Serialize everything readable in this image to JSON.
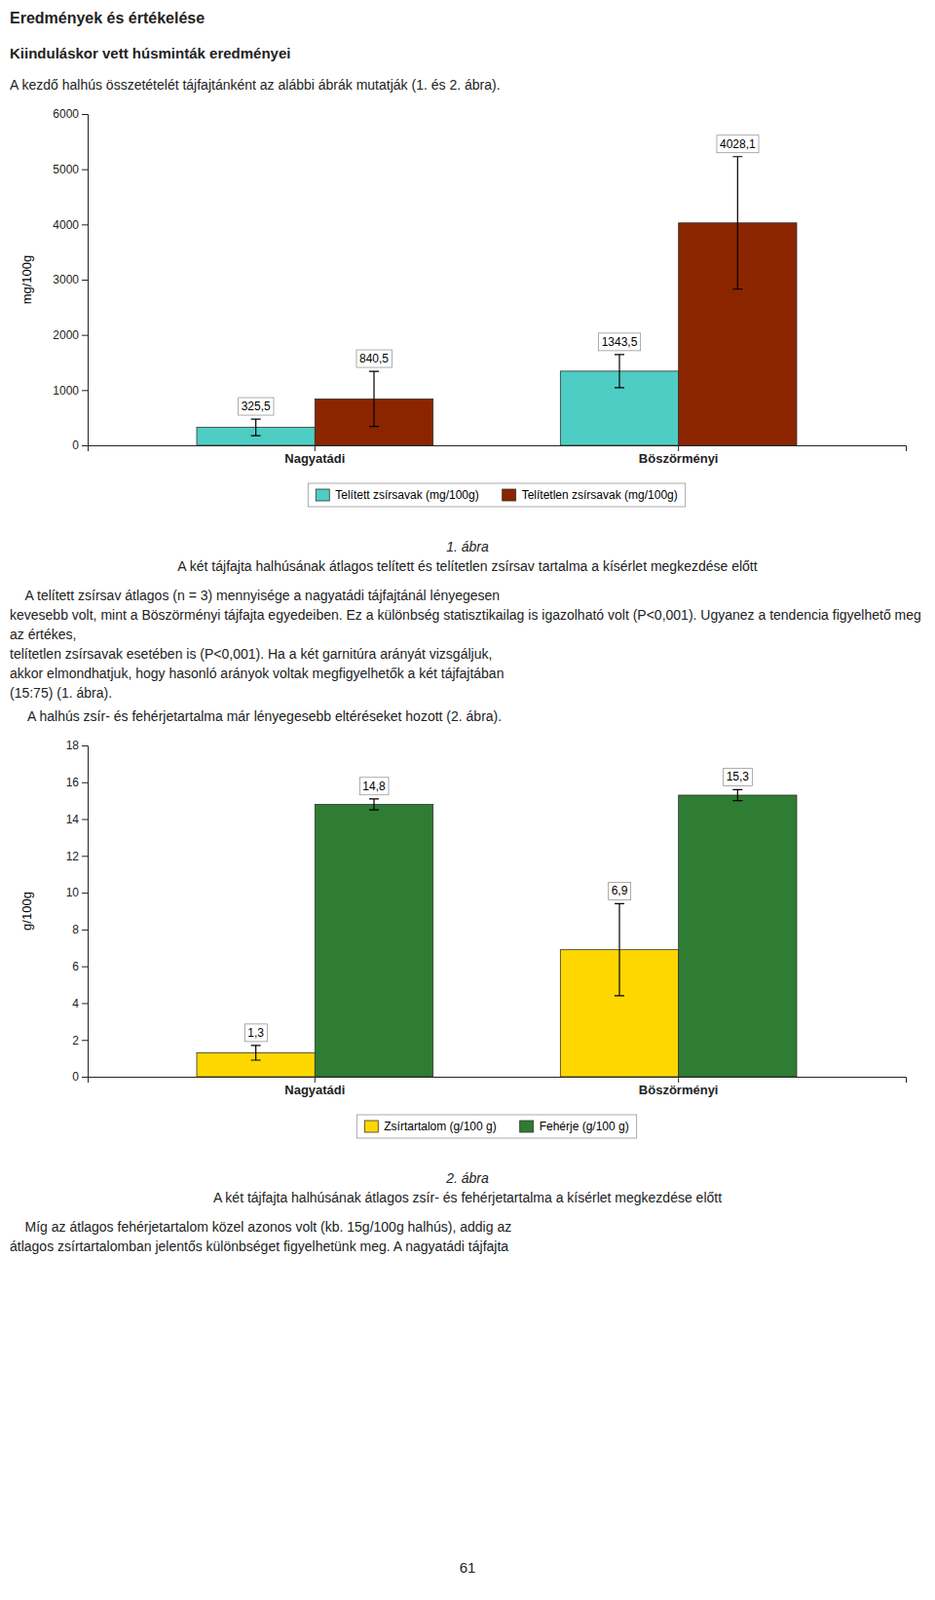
{
  "title": "Eredmények és értékelése",
  "subtitle": "Kiinduláskor vett húsminták eredményei",
  "annotations": [
    "A kezdő halhús összetételét tájfajtánként az alábbi ábrák mutatják (1. és 2. ábra).",
    "    A telített zsírsav átlagos (n = 3) mennyisége a nagyatádi tájfajtánál lényegesen",
    "kevesebb volt, mint a Böszörményi tájfajta egyedeiben. Ez a különbség statisztikailag is igazolható volt (P<0,001). Ugyanez a tendencia figyelhető meg az értékes,",
    "telítetlen zsírsavak esetében is (P<0,001). Ha a két garnitúra arányát vizsgáljuk,",
    "akkor elmondhatjuk, hogy hasonló arányok voltak megfigyelhetők a két tájfajtában",
    "(15:75) (1. ábra).",
    "A halhús zsír- és fehérjetartalma már lényegesebb eltéréseket hozott (2. ábra).",
    "    Míg az átlagos fehérjetartalom közel azonos volt (kb. 15g/100g halhús), addig az",
    "átlagos zsírtartalomban jelentős különbséget figyelhetünk meg. A nagyatádi tájfajta",
    "61"
  ],
  "chart_data": [
    {
      "type": "bar",
      "title": "1. ábra",
      "subtitle": "A két tájfajta halhúsának átlagos telített és telítetlen zsírsav tartalma a kísérlet megkezdése előtt",
      "y_label": "mg/100g",
      "categories": [
        "Nagyatádi",
        "Böszörményi"
      ],
      "series": [
        {
          "name": "Telített zsírsavak (mg/100g)",
          "color": "#4ECDC4",
          "values": [
            325.5,
            1343.5
          ],
          "errors": [
            150,
            300
          ],
          "value_labels": [
            "325,5",
            "1343,5"
          ]
        },
        {
          "name": "Telítetlen zsírsavak (mg/100g)",
          "color": "#8B2500",
          "values": [
            840.5,
            4028.1
          ],
          "errors": [
            500,
            1200
          ],
          "value_labels": [
            "840,5",
            "4028,1"
          ]
        }
      ],
      "ylim": [
        0,
        6000
      ],
      "yticks": [
        0,
        1000,
        2000,
        3000,
        4000,
        5000,
        6000
      ],
      "grid": false,
      "legend": "bottom",
      "data_labels": true
    },
    {
      "type": "bar",
      "title": "2. ábra",
      "subtitle": "A két tájfajta halhúsának átlagos zsír- és fehérjetartalma a kísérlet megkezdése előtt",
      "y_label": "g/100g",
      "categories": [
        "Nagyatádi",
        "Böszörményi"
      ],
      "series": [
        {
          "name": "Zsírtartalom (g/100 g)",
          "color": "#FFD700",
          "values": [
            1.3,
            6.9
          ],
          "errors": [
            0.4,
            2.5
          ],
          "value_labels": [
            "1,3",
            "6,9"
          ]
        },
        {
          "name": "Fehérje (g/100 g)",
          "color": "#2E7D32",
          "values": [
            14.8,
            15.3
          ],
          "errors": [
            0.3,
            0.3
          ],
          "value_labels": [
            "14,8",
            "15,3"
          ]
        }
      ],
      "ylim": [
        0,
        18
      ],
      "yticks": [
        0,
        2,
        4,
        6,
        8,
        10,
        12,
        14,
        16,
        18
      ],
      "grid": false,
      "legend": "bottom",
      "data_labels": true
    }
  ]
}
